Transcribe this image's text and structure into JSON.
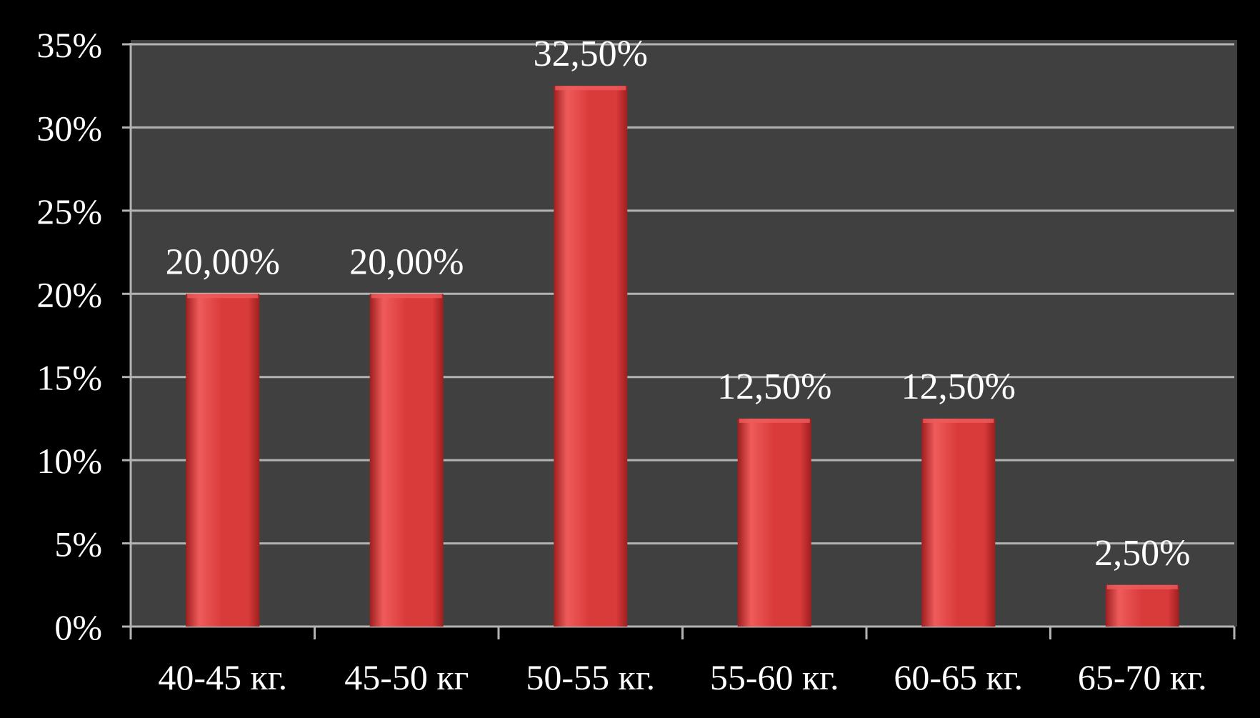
{
  "chart_data": {
    "type": "bar",
    "categories": [
      "40-45 кг.",
      "45-50 кг",
      "50-55 кг.",
      "55-60 кг.",
      "60-65 кг.",
      "65-70 кг."
    ],
    "values": [
      20.0,
      20.0,
      32.5,
      12.5,
      12.5,
      2.5
    ],
    "value_labels": [
      "20,00%",
      "20,00%",
      "32,50%",
      "12,50%",
      "12,50%",
      "2,50%"
    ],
    "y_ticks": [
      0,
      5,
      10,
      15,
      20,
      25,
      30,
      35
    ],
    "y_tick_labels": [
      "0%",
      "5%",
      "10%",
      "15%",
      "20%",
      "25%",
      "30%",
      "35%"
    ],
    "ylim": [
      0,
      35
    ],
    "grid": true,
    "title": "",
    "xlabel": "",
    "ylabel": ""
  },
  "colors": {
    "page_background": "#000000",
    "plot_background": "#404040",
    "gridline": "#b3b3b3",
    "bar_fill": "#d93a3a",
    "bar_highlight": "#ef5b5b",
    "bar_shadow": "#9e1f1f",
    "text": "#ffffff"
  }
}
